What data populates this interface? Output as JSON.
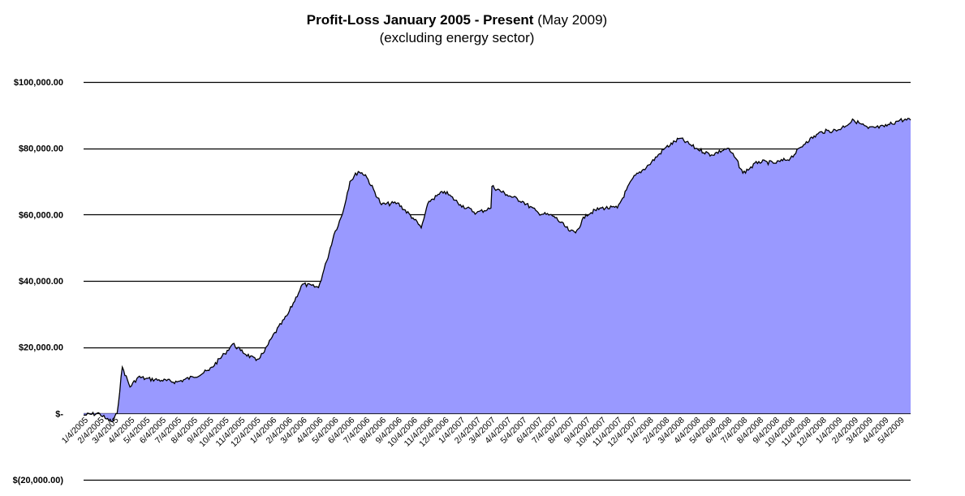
{
  "title": {
    "bold": "Profit-Loss January 2005 - Present",
    "normal": "(May 2009)",
    "subtitle": "(excluding energy sector)"
  },
  "chart_data": {
    "type": "area",
    "title": "Profit-Loss January 2005 - Present (May 2009)",
    "subtitle": "(excluding energy sector)",
    "xlabel": "",
    "ylabel": "",
    "ylim": [
      -20000,
      100000
    ],
    "grid": "horizontal",
    "legend": "none",
    "fill_color": "#9999ff",
    "line_color": "#000000",
    "y_ticks": [
      {
        "value": 100000,
        "label": "$100,000.00"
      },
      {
        "value": 80000,
        "label": "$80,000.00"
      },
      {
        "value": 60000,
        "label": "$60,000.00"
      },
      {
        "value": 40000,
        "label": "$40,000.00"
      },
      {
        "value": 20000,
        "label": "$20,000.00"
      },
      {
        "value": 0,
        "label": "$-"
      },
      {
        "value": -20000,
        "label": "$(20,000.00)"
      }
    ],
    "x_ticks": [
      "1/4/2005",
      "2/4/2005",
      "3/4/2005",
      "4/4/2005",
      "5/4/2005",
      "6/4/2005",
      "7/4/2005",
      "8/4/2005",
      "9/4/2005",
      "10/4/2005",
      "11/4/2005",
      "12/4/2005",
      "1/4/2006",
      "2/4/2006",
      "3/4/2006",
      "4/4/2006",
      "5/4/2006",
      "6/4/2006",
      "7/4/2006",
      "8/4/2006",
      "9/4/2006",
      "10/4/2006",
      "11/4/2006",
      "12/4/2006",
      "1/4/2007",
      "2/4/2007",
      "3/4/2007",
      "4/4/2007",
      "5/4/2007",
      "6/4/2007",
      "7/4/2007",
      "8/4/2007",
      "9/4/2007",
      "10/4/2007",
      "11/4/2007",
      "12/4/2007",
      "1/4/2008",
      "2/4/2008",
      "3/4/2008",
      "4/4/2008",
      "5/4/2008",
      "6/4/2008",
      "7/4/2008",
      "8/4/2008",
      "9/4/2008",
      "10/4/2008",
      "11/4/2008",
      "12/4/2008",
      "1/4/2009",
      "2/4/2009",
      "3/4/2009",
      "4/4/2009",
      "5/4/2009"
    ],
    "series": [
      {
        "x": [
          "1/4/2005",
          "2/4/2005",
          "2/15/2005",
          "3/1/2005",
          "3/10/2005",
          "3/20/2005",
          "4/4/2005",
          "4/20/2005",
          "5/4/2005",
          "6/4/2005",
          "7/4/2005",
          "8/4/2005",
          "9/4/2005",
          "10/4/2005",
          "10/20/2005",
          "11/4/2005",
          "12/4/2005",
          "12/20/2005",
          "1/4/2006",
          "2/4/2006",
          "3/4/2006",
          "4/4/2006",
          "4/20/2006",
          "5/4/2006",
          "5/20/2006",
          "6/4/2006",
          "6/20/2006",
          "7/4/2006",
          "8/4/2006",
          "9/4/2006",
          "10/4/2006",
          "10/20/2006",
          "11/4/2006",
          "12/4/2006",
          "1/4/2007",
          "2/4/2007",
          "3/4/2007",
          "3/6/2007",
          "4/4/2007",
          "5/4/2007",
          "6/4/2007",
          "7/4/2007",
          "8/4/2007",
          "8/15/2007",
          "9/4/2007",
          "10/4/2007",
          "11/4/2007",
          "12/4/2007",
          "1/4/2008",
          "2/4/2008",
          "3/4/2008",
          "4/4/2008",
          "5/4/2008",
          "6/4/2008",
          "6/20/2008",
          "7/4/2008",
          "8/4/2008",
          "9/4/2008",
          "10/4/2008",
          "11/4/2008",
          "12/4/2008",
          "1/4/2009",
          "2/4/2009",
          "3/4/2009",
          "4/4/2009",
          "5/4/2009",
          "5/25/2009"
        ],
        "values": [
          -500,
          0,
          -1500,
          -2500,
          0,
          14000,
          8000,
          11000,
          10500,
          10000,
          9500,
          11000,
          13000,
          18000,
          21000,
          19000,
          16000,
          18500,
          23000,
          30000,
          39000,
          38000,
          46000,
          54000,
          60000,
          70000,
          73000,
          72000,
          63000,
          63500,
          59000,
          56000,
          64000,
          67000,
          63000,
          60500,
          62000,
          68500,
          66000,
          64000,
          60500,
          59500,
          55000,
          54500,
          60000,
          62000,
          62000,
          71000,
          75000,
          80000,
          83000,
          80000,
          78000,
          80000,
          77000,
          72500,
          76000,
          75500,
          77000,
          82000,
          85000,
          85500,
          88500,
          86000,
          86500,
          88500,
          88500
        ]
      }
    ]
  }
}
